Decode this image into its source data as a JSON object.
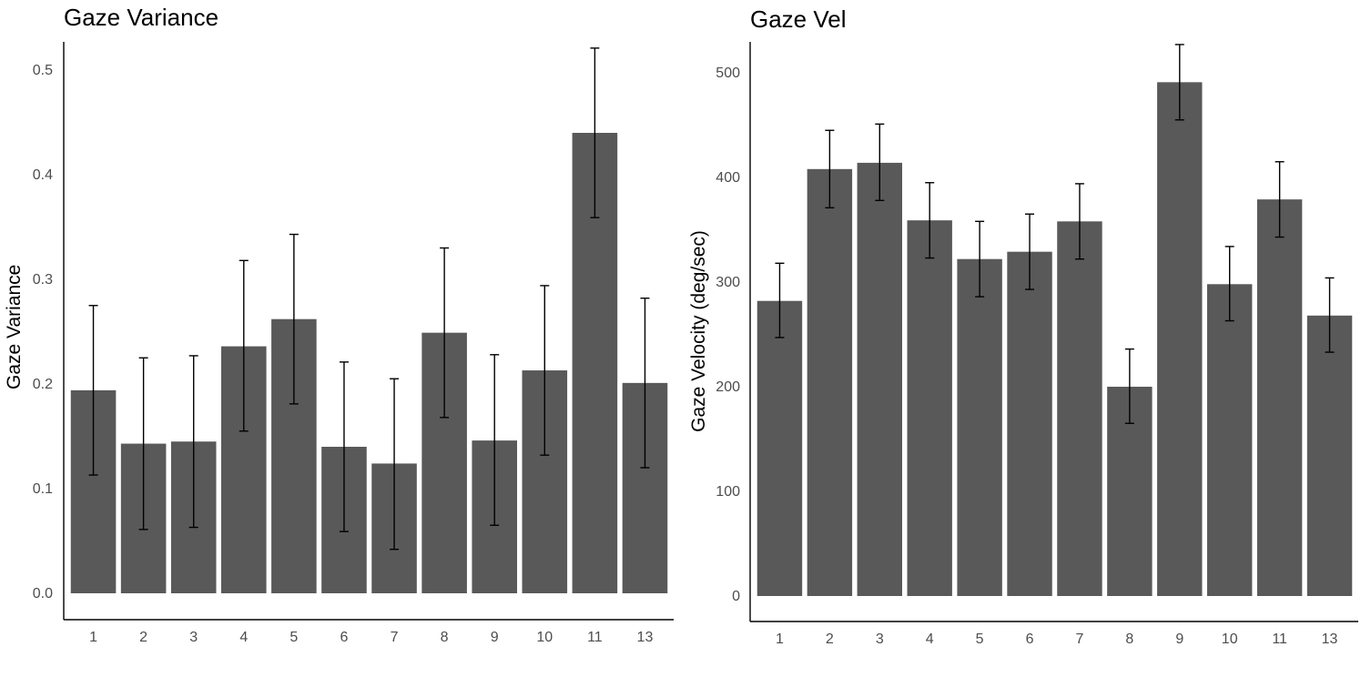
{
  "chart_data": [
    {
      "type": "bar",
      "title": "Gaze Variance",
      "xlabel": "",
      "ylabel": "Gaze Variance",
      "ylim": [
        0,
        0.5
      ],
      "yticks": [
        "0.0",
        "0.1",
        "0.2",
        "0.3",
        "0.4",
        "0.5"
      ],
      "ytick_values": [
        0,
        0.1,
        0.2,
        0.3,
        0.4,
        0.5
      ],
      "categories": [
        "1",
        "2",
        "3",
        "4",
        "5",
        "6",
        "7",
        "8",
        "9",
        "10",
        "11",
        "13"
      ],
      "values": [
        0.194,
        0.143,
        0.145,
        0.236,
        0.262,
        0.14,
        0.124,
        0.249,
        0.146,
        0.213,
        0.44,
        0.201
      ],
      "error_low": [
        0.113,
        0.061,
        0.063,
        0.155,
        0.181,
        0.059,
        0.042,
        0.168,
        0.065,
        0.132,
        0.359,
        0.12
      ],
      "error_high": [
        0.275,
        0.225,
        0.227,
        0.318,
        0.343,
        0.221,
        0.205,
        0.33,
        0.228,
        0.294,
        0.521,
        0.282
      ],
      "bar_color": "#595959",
      "grid": false
    },
    {
      "type": "bar",
      "title": "Gaze Vel",
      "xlabel": "",
      "ylabel": "Gaze Velocity (deg/sec)",
      "ylim": [
        0,
        500
      ],
      "yticks": [
        "0",
        "100",
        "200",
        "300",
        "400",
        "500"
      ],
      "ytick_values": [
        0,
        100,
        200,
        300,
        400,
        500
      ],
      "categories": [
        "1",
        "2",
        "3",
        "4",
        "5",
        "6",
        "7",
        "8",
        "9",
        "10",
        "11",
        "13"
      ],
      "values": [
        282,
        408,
        414,
        359,
        322,
        329,
        358,
        200,
        491,
        298,
        379,
        268
      ],
      "error_low": [
        247,
        371,
        378,
        323,
        286,
        293,
        322,
        165,
        455,
        263,
        343,
        233
      ],
      "error_high": [
        318,
        445,
        451,
        395,
        358,
        365,
        394,
        236,
        527,
        334,
        415,
        304
      ],
      "bar_color": "#595959",
      "grid": false
    }
  ]
}
